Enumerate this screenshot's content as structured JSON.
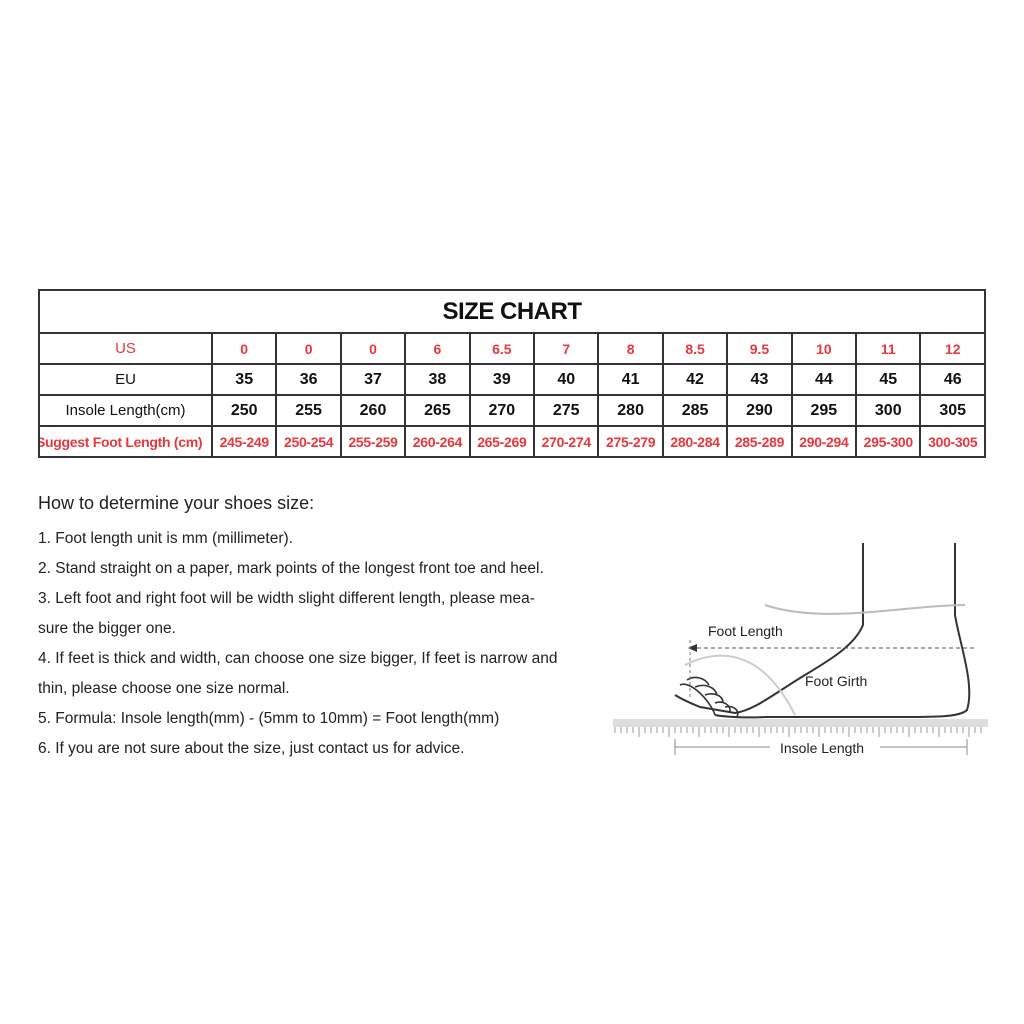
{
  "size_chart": {
    "title": "SIZE CHART",
    "rows": [
      {
        "label": "US",
        "values": [
          "0",
          "0",
          "0",
          "6",
          "6.5",
          "7",
          "8",
          "8.5",
          "9.5",
          "10",
          "11",
          "12"
        ]
      },
      {
        "label": "EU",
        "values": [
          "35",
          "36",
          "37",
          "38",
          "39",
          "40",
          "41",
          "42",
          "43",
          "44",
          "45",
          "46"
        ]
      },
      {
        "label": "Insole Length(cm)",
        "values": [
          "250",
          "255",
          "260",
          "265",
          "270",
          "275",
          "280",
          "285",
          "290",
          "295",
          "300",
          "305"
        ]
      },
      {
        "label": "Suggest Foot Length (cm)",
        "values": [
          "245-249",
          "250-254",
          "255-259",
          "260-264",
          "265-269",
          "270-274",
          "275-279",
          "280-284",
          "285-289",
          "290-294",
          "295-300",
          "300-305"
        ]
      }
    ]
  },
  "instructions": {
    "heading": "How to determine your shoes size:",
    "items": [
      "1. Foot length unit is mm (millimeter).",
      "2. Stand straight on a paper, mark points of the longest front toe and heel.",
      "3. Left foot and right foot will be width slight different length, please mea-",
      "sure the bigger one.",
      "4. If feet is thick and width, can choose one size bigger,  If feet is narrow and",
      "thin, please choose one size normal.",
      "5. Formula: Insole length(mm) - (5mm to 10mm) = Foot length(mm)",
      "6. If you are not sure about the size, just contact us for advice."
    ]
  },
  "diagram": {
    "foot_length": "Foot Length",
    "foot_girth": "Foot Girth",
    "insole_length": "Insole Length"
  },
  "colors": {
    "accent_red": "#e8383d",
    "text": "#111111"
  }
}
